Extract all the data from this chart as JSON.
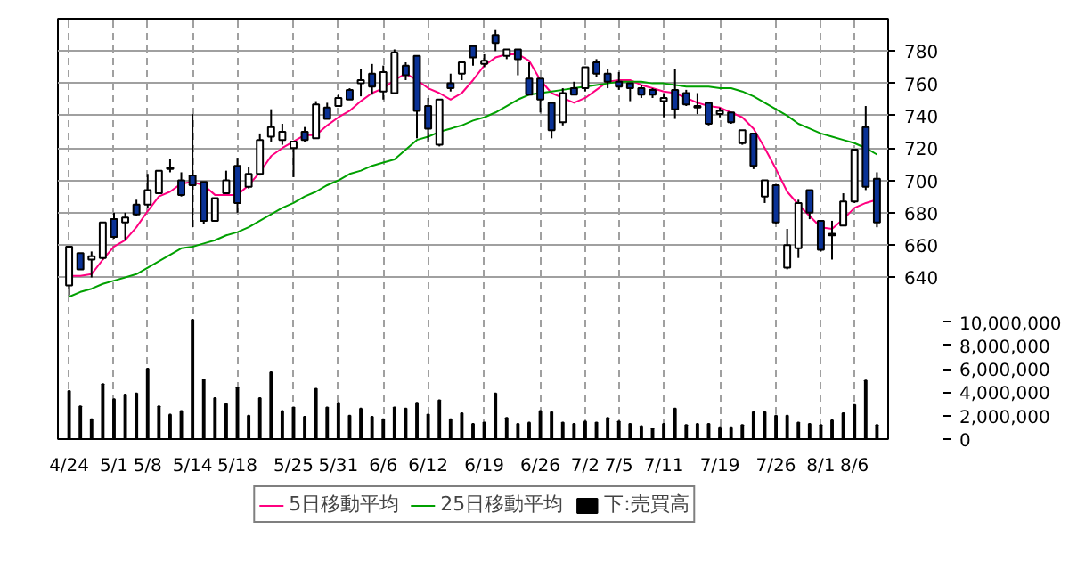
{
  "chart_data": {
    "type": "candlestick",
    "categories": [
      "4/24",
      null,
      null,
      null,
      "5/1",
      null,
      null,
      "5/8",
      null,
      null,
      null,
      "5/14",
      null,
      null,
      null,
      "5/18",
      null,
      null,
      null,
      null,
      "5/25",
      null,
      null,
      null,
      "5/31",
      null,
      null,
      null,
      "6/6",
      null,
      null,
      null,
      "6/12",
      null,
      null,
      null,
      null,
      "6/19",
      null,
      null,
      null,
      null,
      "6/26",
      null,
      null,
      null,
      "7/2",
      null,
      null,
      "7/5",
      null,
      null,
      null,
      "7/11",
      null,
      null,
      null,
      null,
      "7/19",
      null,
      null,
      null,
      null,
      "7/26",
      null,
      null,
      null,
      "8/1",
      null,
      null,
      "8/6",
      null,
      null
    ],
    "ohlc": [
      [
        635,
        659,
        629,
        659
      ],
      [
        655,
        655,
        645,
        645
      ],
      [
        651,
        656,
        640,
        653
      ],
      [
        652,
        674,
        651,
        674
      ],
      [
        676,
        680,
        664,
        665
      ],
      [
        674,
        680,
        663,
        677
      ],
      [
        685,
        688,
        678,
        679
      ],
      [
        685,
        704,
        683,
        694
      ],
      [
        692,
        706,
        692,
        706
      ],
      [
        707,
        713,
        705,
        708
      ],
      [
        700,
        705,
        690,
        691
      ],
      [
        703,
        741,
        671,
        697
      ],
      [
        699,
        699,
        673,
        675
      ],
      [
        675,
        689,
        675,
        689
      ],
      [
        692,
        706,
        692,
        700
      ],
      [
        709,
        714,
        680,
        686
      ],
      [
        696,
        708,
        695,
        704
      ],
      [
        704,
        729,
        703,
        725
      ],
      [
        727,
        744,
        724,
        733
      ],
      [
        725,
        735,
        722,
        730
      ],
      [
        720,
        724,
        702,
        724
      ],
      [
        730,
        733,
        724,
        725
      ],
      [
        726,
        749,
        726,
        747
      ],
      [
        745,
        748,
        738,
        738
      ],
      [
        746,
        753,
        746,
        751
      ],
      [
        756,
        757,
        750,
        750
      ],
      [
        760,
        769,
        752,
        762
      ],
      [
        766,
        772,
        753,
        758
      ],
      [
        755,
        771,
        750,
        767
      ],
      [
        754,
        781,
        754,
        779
      ],
      [
        771,
        773,
        762,
        765
      ],
      [
        777,
        777,
        726,
        743
      ],
      [
        746,
        751,
        724,
        732
      ],
      [
        722,
        750,
        721,
        750
      ],
      [
        760,
        766,
        755,
        757
      ],
      [
        766,
        773,
        762,
        773
      ],
      [
        783,
        783,
        771,
        776
      ],
      [
        772,
        778,
        770,
        774
      ],
      [
        790,
        793,
        780,
        785
      ],
      [
        777,
        781,
        775,
        781
      ],
      [
        781,
        781,
        765,
        775
      ],
      [
        763,
        773,
        753,
        753
      ],
      [
        763,
        763,
        742,
        750
      ],
      [
        748,
        748,
        726,
        731
      ],
      [
        736,
        757,
        734,
        754
      ],
      [
        757,
        761,
        753,
        753
      ],
      [
        757,
        770,
        755,
        770
      ],
      [
        773,
        775,
        764,
        766
      ],
      [
        766,
        769,
        757,
        761
      ],
      [
        761,
        767,
        756,
        758
      ],
      [
        760,
        760,
        749,
        757
      ],
      [
        757,
        759,
        751,
        753
      ],
      [
        756,
        757,
        751,
        753
      ],
      [
        749,
        754,
        739,
        751
      ],
      [
        756,
        769,
        738,
        744
      ],
      [
        754,
        756,
        746,
        747
      ],
      [
        746,
        754,
        741,
        745
      ],
      [
        748,
        748,
        734,
        735
      ],
      [
        741,
        745,
        739,
        743
      ],
      [
        742,
        742,
        735,
        736
      ],
      [
        723,
        731,
        722,
        731
      ],
      [
        729,
        729,
        707,
        709
      ],
      [
        690,
        700,
        686,
        700
      ],
      [
        697,
        697,
        673,
        674
      ],
      [
        646,
        670,
        645,
        660
      ],
      [
        658,
        688,
        652,
        686
      ],
      [
        694,
        694,
        676,
        680
      ],
      [
        675,
        675,
        656,
        657
      ],
      [
        666,
        675,
        651,
        667
      ],
      [
        672,
        692,
        672,
        687
      ],
      [
        687,
        719,
        686,
        719
      ],
      [
        733,
        746,
        694,
        696
      ],
      [
        701,
        705,
        671,
        674
      ]
    ],
    "series": [
      {
        "name": "5日移動平均",
        "type": "line",
        "color": "#ff0080",
        "values": [
          641,
          641,
          642,
          651,
          659,
          663,
          671,
          681,
          690,
          693,
          698,
          699,
          697,
          691,
          691,
          691,
          697,
          705,
          715,
          720,
          724,
          728,
          728,
          734,
          739,
          743,
          749,
          754,
          757,
          762,
          766,
          762,
          757,
          754,
          750,
          754,
          762,
          771,
          776,
          778,
          778,
          774,
          762,
          754,
          751,
          748,
          751,
          756,
          761,
          762,
          762,
          759,
          757,
          755,
          754,
          751,
          748,
          746,
          745,
          742,
          739,
          732,
          720,
          707,
          693,
          685,
          678,
          671,
          670,
          676,
          683,
          686,
          688
        ]
      },
      {
        "name": "25日移動平均",
        "type": "line",
        "color": "#00a000",
        "values": [
          628,
          631,
          633,
          636,
          638,
          640,
          642,
          646,
          650,
          654,
          658,
          659,
          661,
          663,
          666,
          668,
          671,
          675,
          679,
          683,
          686,
          690,
          693,
          697,
          700,
          704,
          706,
          709,
          711,
          713,
          719,
          725,
          727,
          730,
          732,
          734,
          737,
          739,
          742,
          746,
          750,
          753,
          754,
          755,
          756,
          757,
          758,
          759,
          760,
          761,
          761,
          761,
          760,
          760,
          759,
          758,
          758,
          758,
          757,
          757,
          755,
          752,
          748,
          744,
          740,
          735,
          732,
          729,
          727,
          725,
          723,
          720,
          716
        ]
      },
      {
        "name": "下:売買高",
        "type": "bar",
        "axis": "y2",
        "color": "#000000",
        "values": [
          4100000,
          2800000,
          1700000,
          4700000,
          3400000,
          3800000,
          3900000,
          6000000,
          2800000,
          2100000,
          2400000,
          10200000,
          5100000,
          3500000,
          3000000,
          4400000,
          2000000,
          3500000,
          5700000,
          2400000,
          2700000,
          1900000,
          4300000,
          2700000,
          3100000,
          2000000,
          2600000,
          1900000,
          1700000,
          2700000,
          2600000,
          3100000,
          2100000,
          3300000,
          1700000,
          2200000,
          1300000,
          1400000,
          3900000,
          1800000,
          1300000,
          1400000,
          2400000,
          2300000,
          1400000,
          1300000,
          1500000,
          1400000,
          1800000,
          1500000,
          1300000,
          1100000,
          900000,
          1300000,
          2600000,
          1200000,
          1300000,
          1300000,
          1000000,
          1000000,
          1200000,
          2300000,
          2300000,
          2000000,
          2000000,
          1400000,
          1300000,
          1200000,
          1600000,
          2200000,
          2900000,
          5000000,
          1200000
        ]
      }
    ],
    "ylim": [
      540,
      800
    ],
    "yticks": [
      640,
      660,
      680,
      700,
      720,
      740,
      760,
      780
    ],
    "y2lim": [
      0,
      35900000
    ],
    "y2ticks": [
      0,
      {
        "value": 2000000,
        "label": "2,000,000"
      },
      {
        "value": 4000000,
        "label": "4,000,000"
      },
      {
        "value": 6000000,
        "label": "6,000,000"
      },
      {
        "value": 8000000,
        "label": "8,000,000"
      },
      {
        "value": 10000000,
        "label": "10,000,000"
      }
    ],
    "grid": true,
    "legend": "bottom"
  }
}
